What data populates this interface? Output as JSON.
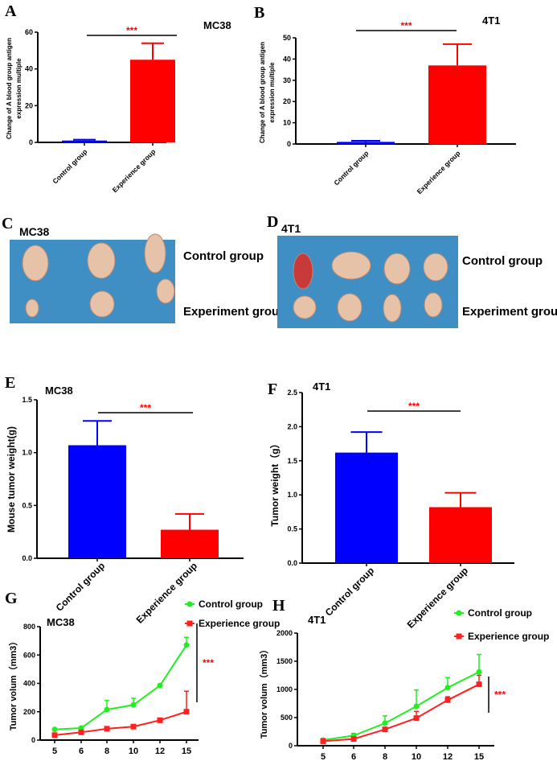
{
  "panels": {
    "A": "A",
    "B": "B",
    "C": "C",
    "D": "D",
    "E": "E",
    "F": "F",
    "G": "G",
    "H": "H"
  },
  "photos": {
    "C": {
      "title": "MC38",
      "row1": "Control group",
      "row2": "Experiment group",
      "background": "#3f8fc4",
      "tumors_row1": 3,
      "tumors_row2": 3
    },
    "D": {
      "title": "4T1",
      "row1": "Control group",
      "row2": "Experiment group",
      "background": "#3f8fc4",
      "tumors_row1": 4,
      "tumors_row2": 4
    }
  },
  "colors": {
    "control_bar": "#0000ff",
    "experience_bar": "#ff0000",
    "control_line": "#22ee22",
    "experience_line": "#ff2020",
    "significance": "#ff0000"
  },
  "chart_data": [
    {
      "id": "A",
      "type": "bar",
      "title": "MC38",
      "ylabel": [
        "Change of A blood group antigen",
        "expression multiple"
      ],
      "categories": [
        "Control group",
        "Experience group"
      ],
      "values": [
        1.0,
        45
      ],
      "error_upper": [
        1.5,
        54
      ],
      "ylim": [
        0,
        60
      ],
      "yticks": [
        0,
        20,
        40,
        60
      ],
      "significance": "***"
    },
    {
      "id": "B",
      "type": "bar",
      "title": "4T1",
      "ylabel": [
        "Change of A blood group antigen",
        "expression multiple"
      ],
      "categories": [
        "Control group",
        "Experience group"
      ],
      "values": [
        1.0,
        37
      ],
      "error_upper": [
        1.5,
        47
      ],
      "ylim": [
        0,
        50
      ],
      "yticks": [
        0,
        10,
        20,
        30,
        40,
        50
      ],
      "significance": "***"
    },
    {
      "id": "E",
      "type": "bar",
      "title": "MC38",
      "ylabel": [
        "Mouse tumor weight(g)"
      ],
      "categories": [
        "Control group",
        "Experience group"
      ],
      "values": [
        1.07,
        0.27
      ],
      "error_upper": [
        1.3,
        0.42
      ],
      "ylim": [
        0,
        1.5
      ],
      "yticks": [
        "0.0",
        "0.5",
        "1.0",
        "1.5"
      ],
      "significance": "***"
    },
    {
      "id": "F",
      "type": "bar",
      "title": "4T1",
      "ylabel": [
        "Tumor weight（g）"
      ],
      "categories": [
        "Control group",
        "Experience group"
      ],
      "values": [
        1.62,
        0.82
      ],
      "error_upper": [
        1.92,
        1.03
      ],
      "ylim": [
        0,
        2.5
      ],
      "yticks": [
        "0.0",
        "0.5",
        "1.0",
        "1.5",
        "2.0",
        "2.5"
      ],
      "significance": "***"
    },
    {
      "id": "G",
      "type": "line",
      "title": "MC38",
      "ylabel": "Tumor volum（mm3）",
      "x": [
        "5",
        "6",
        "8",
        "10",
        "12",
        "15"
      ],
      "series": [
        {
          "name": "Control group",
          "values": [
            75,
            85,
            215,
            248,
            385,
            670
          ],
          "error_upper": [
            80,
            90,
            280,
            295,
            390,
            725
          ]
        },
        {
          "name": "Experience group",
          "values": [
            35,
            55,
            80,
            95,
            140,
            200
          ],
          "error_upper": [
            40,
            60,
            85,
            105,
            145,
            345
          ]
        }
      ],
      "ylim": [
        0,
        800
      ],
      "yticks": [
        0,
        200,
        400,
        600,
        800
      ],
      "legend": "top-right",
      "significance": "***"
    },
    {
      "id": "H",
      "type": "line",
      "title": "4T1",
      "ylabel": "Tumor volum（mm3）",
      "x": [
        "5",
        "6",
        "8",
        "10",
        "12",
        "15"
      ],
      "series": [
        {
          "name": "Control group",
          "values": [
            100,
            180,
            400,
            700,
            1030,
            1310
          ],
          "error_upper": [
            130,
            220,
            530,
            990,
            1210,
            1620
          ]
        },
        {
          "name": "Experience group",
          "values": [
            80,
            120,
            290,
            490,
            810,
            1090
          ],
          "error_upper": [
            90,
            130,
            300,
            610,
            870,
            1250
          ]
        }
      ],
      "ylim": [
        0,
        2000
      ],
      "yticks": [
        0,
        500,
        1000,
        1500,
        2000
      ],
      "legend": "top-right",
      "significance": "***"
    }
  ]
}
